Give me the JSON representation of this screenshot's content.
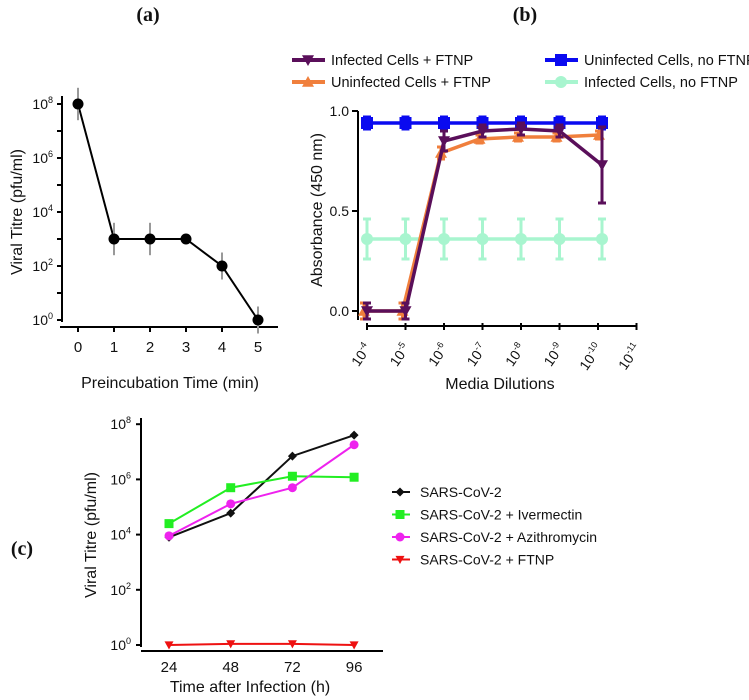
{
  "panel_labels": {
    "a": "(a)",
    "b": "(b)",
    "c": "(c)"
  },
  "chart_data": [
    {
      "panel": "a",
      "type": "line",
      "xlabel": "Preincubation Time (min)",
      "ylabel": "Viral Titre  (pfu/ml)",
      "yscale": "log",
      "ylim": [
        1,
        100000000
      ],
      "x": [
        0,
        1,
        2,
        3,
        4,
        5
      ],
      "x_ticks": [
        "0",
        "1",
        "2",
        "3",
        "4",
        "5"
      ],
      "y_ticks": [
        {
          "base": "10",
          "exp": "0"
        },
        {
          "base": "10",
          "exp": "2"
        },
        {
          "base": "10",
          "exp": "4"
        },
        {
          "base": "10",
          "exp": "6"
        },
        {
          "base": "10",
          "exp": "8"
        }
      ],
      "series": [
        {
          "name": "Viral Titre",
          "color": "#000000",
          "values": [
            100000000,
            1000,
            1000,
            1000,
            100,
            1
          ],
          "errors_log": [
            0.6,
            0.6,
            0.6,
            0.1,
            0.5,
            0.5
          ]
        }
      ]
    },
    {
      "panel": "b",
      "type": "line",
      "xlabel": "Media Dilutions",
      "ylabel": "Absorbance (450 nm)",
      "ylim": [
        0,
        1
      ],
      "y_ticks": [
        "0.0",
        "0.5",
        "1.0"
      ],
      "x_ticks": [
        {
          "base": "10",
          "exp": "-4"
        },
        {
          "base": "10",
          "exp": "-5"
        },
        {
          "base": "10",
          "exp": "-6"
        },
        {
          "base": "10",
          "exp": "-7"
        },
        {
          "base": "10",
          "exp": "-8"
        },
        {
          "base": "10",
          "exp": "-9"
        },
        {
          "base": "10",
          "exp": "-10"
        },
        {
          "base": "10",
          "exp": "-11"
        }
      ],
      "legend_position": "top",
      "series": [
        {
          "name": "Infected Cells + FTNP",
          "color": "#5a0f5a",
          "marker": "triangle-down",
          "values": [
            0.0,
            0.0,
            0.85,
            0.9,
            0.91,
            0.9,
            0.73
          ],
          "errors": [
            0.04,
            0.04,
            0.05,
            0.03,
            0.03,
            0.03,
            0.19
          ]
        },
        {
          "name": "Uninfected Cells + FTNP",
          "color": "#f07f3c",
          "marker": "triangle-up",
          "values": [
            0.0,
            0.0,
            0.79,
            0.86,
            0.87,
            0.87,
            0.88
          ],
          "errors": [
            0.04,
            0.04,
            0.03,
            0.02,
            0.02,
            0.02,
            0.02
          ]
        },
        {
          "name": "Uninfected Cells, no FTNP",
          "color": "#0a0af0",
          "marker": "square",
          "values": [
            0.94,
            0.94,
            0.94,
            0.94,
            0.94,
            0.94,
            0.94
          ],
          "errors": [
            0.03,
            0.03,
            0.03,
            0.03,
            0.03,
            0.03,
            0.03
          ]
        },
        {
          "name": "Infected Cells, no FTNP",
          "color": "#a8f5cf",
          "marker": "circle",
          "values": [
            0.36,
            0.36,
            0.36,
            0.36,
            0.36,
            0.36,
            0.36
          ],
          "errors": [
            0.1,
            0.1,
            0.1,
            0.1,
            0.1,
            0.1,
            0.1
          ]
        }
      ]
    },
    {
      "panel": "c",
      "type": "line",
      "xlabel": "Time after Infection (h)",
      "ylabel": "Viral Titre (pfu/ml)",
      "yscale": "log",
      "ylim": [
        1,
        100000000
      ],
      "x": [
        24,
        48,
        72,
        96
      ],
      "x_ticks": [
        "24",
        "48",
        "72",
        "96"
      ],
      "y_ticks": [
        {
          "base": "10",
          "exp": "0"
        },
        {
          "base": "10",
          "exp": "2"
        },
        {
          "base": "10",
          "exp": "4"
        },
        {
          "base": "10",
          "exp": "6"
        },
        {
          "base": "10",
          "exp": "8"
        }
      ],
      "legend_position": "right",
      "series": [
        {
          "name": "SARS-CoV-2",
          "color": "#111111",
          "marker": "diamond",
          "values": [
            8000,
            60000,
            7000000,
            40000000
          ]
        },
        {
          "name": "SARS-CoV-2 + Ivermectin",
          "color": "#22ee22",
          "marker": "square",
          "values": [
            25000,
            500000,
            1300000,
            1200000
          ]
        },
        {
          "name": "SARS-CoV-2 + Azithromycin",
          "color": "#ee22ee",
          "marker": "circle",
          "values": [
            9000,
            130000,
            500000,
            18000000
          ]
        },
        {
          "name": "SARS-CoV-2 + FTNP",
          "color": "#ee1111",
          "marker": "triangle-down",
          "values": [
            1,
            1.1,
            1.1,
            1
          ]
        }
      ]
    }
  ]
}
